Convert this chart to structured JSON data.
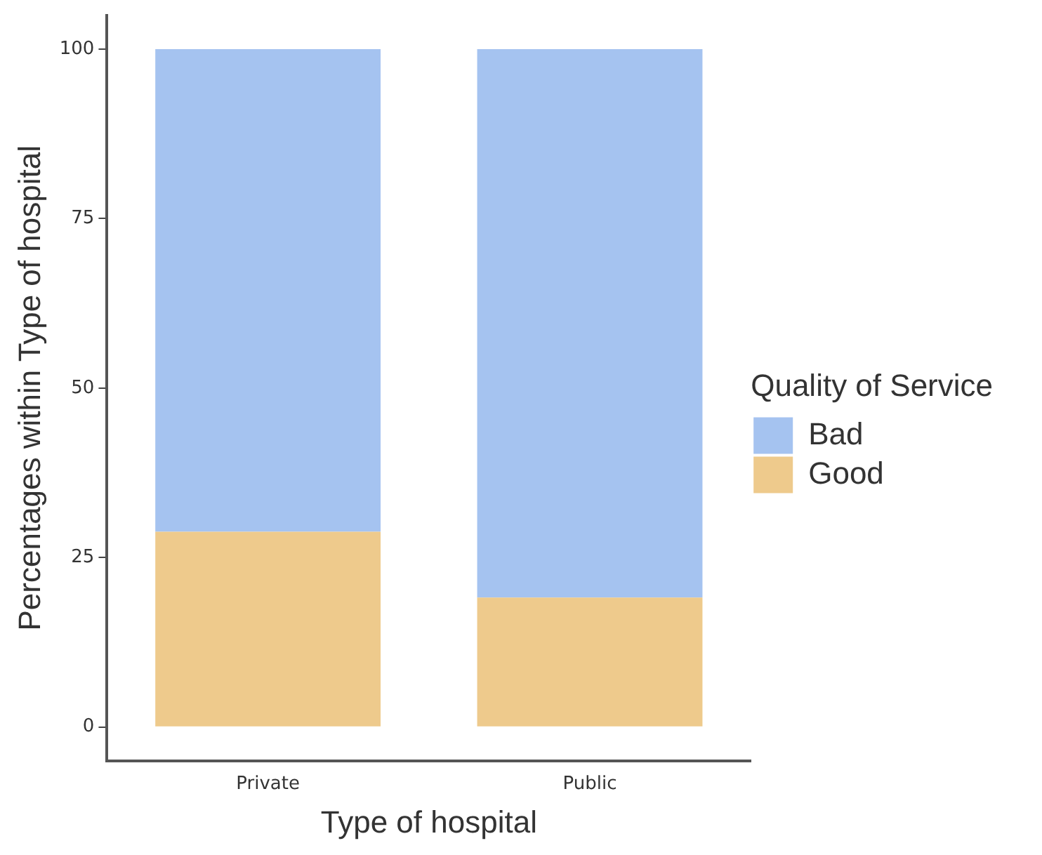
{
  "chart_data": {
    "type": "bar",
    "stacked": true,
    "xlabel": "Type of hospital",
    "ylabel": "Percentages within Type of hospital",
    "legend_title": "Quality of Service",
    "legend": "right",
    "grid": false,
    "categories": [
      "Private",
      "Public"
    ],
    "series": [
      {
        "name": "Good",
        "color": "#eeca8c",
        "values": [
          28.8,
          19.1
        ]
      },
      {
        "name": "Bad",
        "color": "#a5c3f0",
        "values": [
          71.2,
          80.9
        ]
      }
    ],
    "ylim": [
      -5,
      105
    ],
    "yticks": [
      0,
      25,
      50,
      75,
      100
    ]
  }
}
